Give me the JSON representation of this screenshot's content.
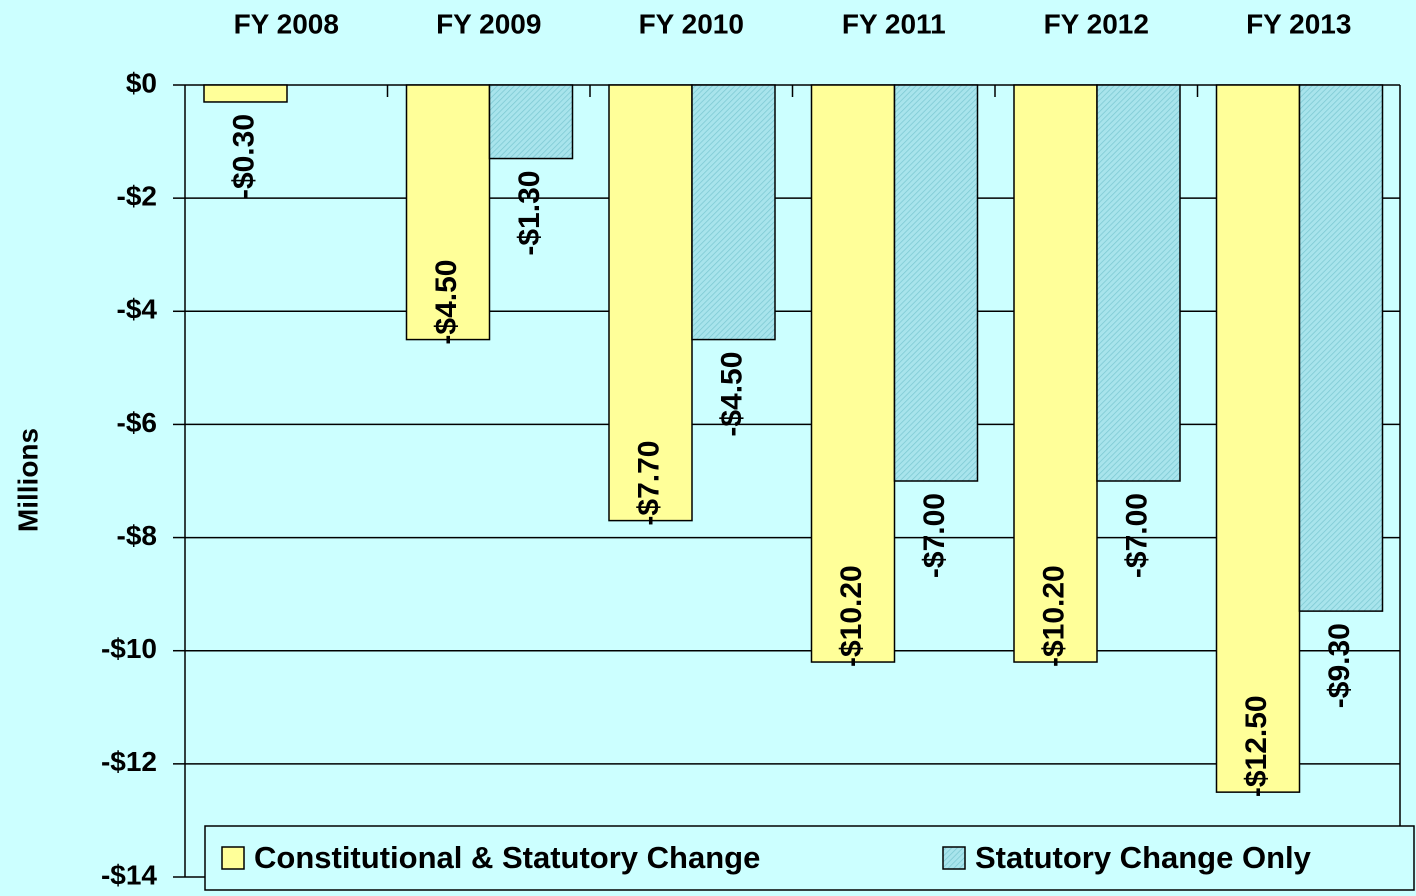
{
  "chart_data": {
    "type": "bar",
    "y_label": "Millions",
    "categories": [
      "FY 2008",
      "FY 2009",
      "FY 2010",
      "FY 2011",
      "FY 2012",
      "FY 2013"
    ],
    "series": [
      {
        "name": "Constitutional & Statutory Change",
        "color": "#ffff99",
        "values": [
          -0.3,
          -4.5,
          -7.7,
          -10.2,
          -10.2,
          -12.5
        ],
        "value_labels": [
          "-$0.30",
          "-$4.50",
          "-$7.70",
          "-$10.20",
          "-$10.20",
          "-$12.50"
        ]
      },
      {
        "name": "Statutory Change Only",
        "color": "#a8e4ec",
        "values": [
          null,
          -1.3,
          -4.5,
          -7.0,
          -7.0,
          -9.3
        ],
        "value_labels": [
          null,
          "-$1.30",
          "-$4.50",
          "-$7.00",
          "-$7.00",
          "-$9.30"
        ]
      }
    ],
    "ylim": [
      -14,
      0
    ],
    "yticks": [
      {
        "value": 0,
        "label": "$0"
      },
      {
        "value": -2,
        "label": "-$2"
      },
      {
        "value": -4,
        "label": "-$4"
      },
      {
        "value": -6,
        "label": "-$6"
      },
      {
        "value": -8,
        "label": "-$8"
      },
      {
        "value": -10,
        "label": "-$10"
      },
      {
        "value": -12,
        "label": "-$12"
      },
      {
        "value": -14,
        "label": "-$14"
      }
    ],
    "grid": true,
    "legend": "bottom"
  }
}
